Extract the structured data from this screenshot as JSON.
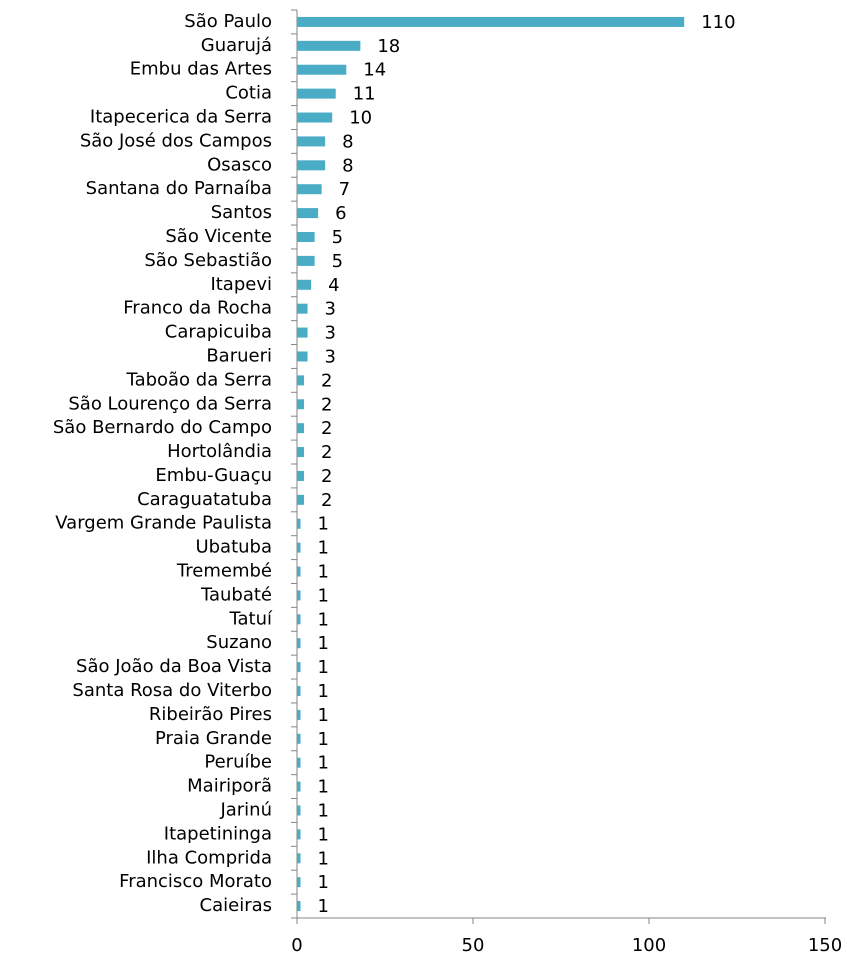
{
  "chart_data": {
    "type": "bar",
    "orientation": "horizontal",
    "categories": [
      "São Paulo",
      "Guarujá",
      "Embu das Artes",
      "Cotia",
      "Itapecerica da Serra",
      "São José dos Campos",
      "Osasco",
      "Santana do Parnaíba",
      "Santos",
      "São Vicente",
      "São Sebastião",
      "Itapevi",
      "Franco da Rocha",
      "Carapicuiba",
      "Barueri",
      "Taboão da Serra",
      "São Lourenço da Serra",
      "São Bernardo do Campo",
      "Hortolândia",
      "Embu-Guaçu",
      "Caraguatatuba",
      "Vargem Grande Paulista",
      "Ubatuba",
      "Tremembé",
      "Taubaté",
      "Tatuí",
      "Suzano",
      "São João da Boa Vista",
      "Santa Rosa do Viterbo",
      "Ribeirão Pires",
      "Praia Grande",
      "Peruíbe",
      "Mairiporã",
      "Jarinú",
      "Itapetininga",
      "Ilha Comprida",
      "Francisco Morato",
      "Caieiras"
    ],
    "values": [
      110,
      18,
      14,
      11,
      10,
      8,
      8,
      7,
      6,
      5,
      5,
      4,
      3,
      3,
      3,
      2,
      2,
      2,
      2,
      2,
      2,
      1,
      1,
      1,
      1,
      1,
      1,
      1,
      1,
      1,
      1,
      1,
      1,
      1,
      1,
      1,
      1,
      1
    ],
    "color": "#4bacc6",
    "xlim": [
      0,
      150
    ],
    "xticks": [
      0,
      50,
      100,
      150
    ],
    "grid": false
  }
}
